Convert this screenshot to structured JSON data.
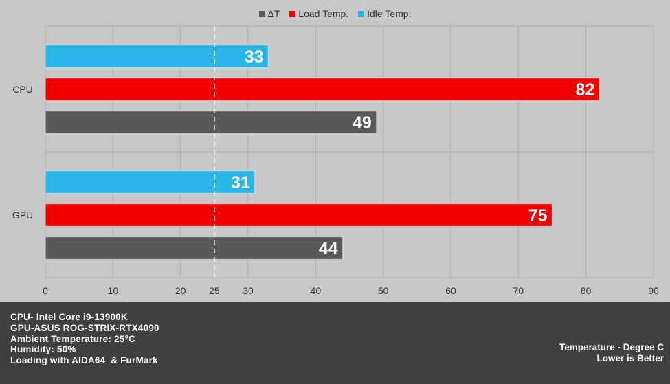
{
  "chart_data": {
    "type": "bar",
    "orientation": "horizontal",
    "categories": [
      "CPU",
      "GPU"
    ],
    "series": [
      {
        "name": "Idle Temp.",
        "color": "#29b6e6",
        "values": [
          33,
          31
        ]
      },
      {
        "name": "Load Temp.",
        "color": "#f20000",
        "values": [
          82,
          75
        ]
      },
      {
        "name": "ΔT",
        "color": "#595959",
        "values": [
          49,
          44
        ]
      }
    ],
    "legend_order": [
      "ΔT",
      "Load Temp.",
      "Idle Temp."
    ],
    "legend_position": "top-center",
    "x_ticks": [
      0,
      10,
      20,
      25,
      30,
      40,
      50,
      60,
      70,
      80,
      90
    ],
    "xlim": [
      0,
      90
    ],
    "reference_line": {
      "value": 25,
      "style": "dashed",
      "color": "#ffffff"
    },
    "grid": true,
    "data_labels": true
  },
  "footer": {
    "notes": [
      "CPU- Intel Core i9-13900K",
      "GPU-ASUS ROG-STRIX-RTX4090",
      "Ambient Temperature: 25°C",
      "Humidity: 50%",
      "Loading with AIDA64  & FurMark"
    ],
    "unit_note": "Temperature - Degree C",
    "direction_note": "Lower is Better"
  }
}
